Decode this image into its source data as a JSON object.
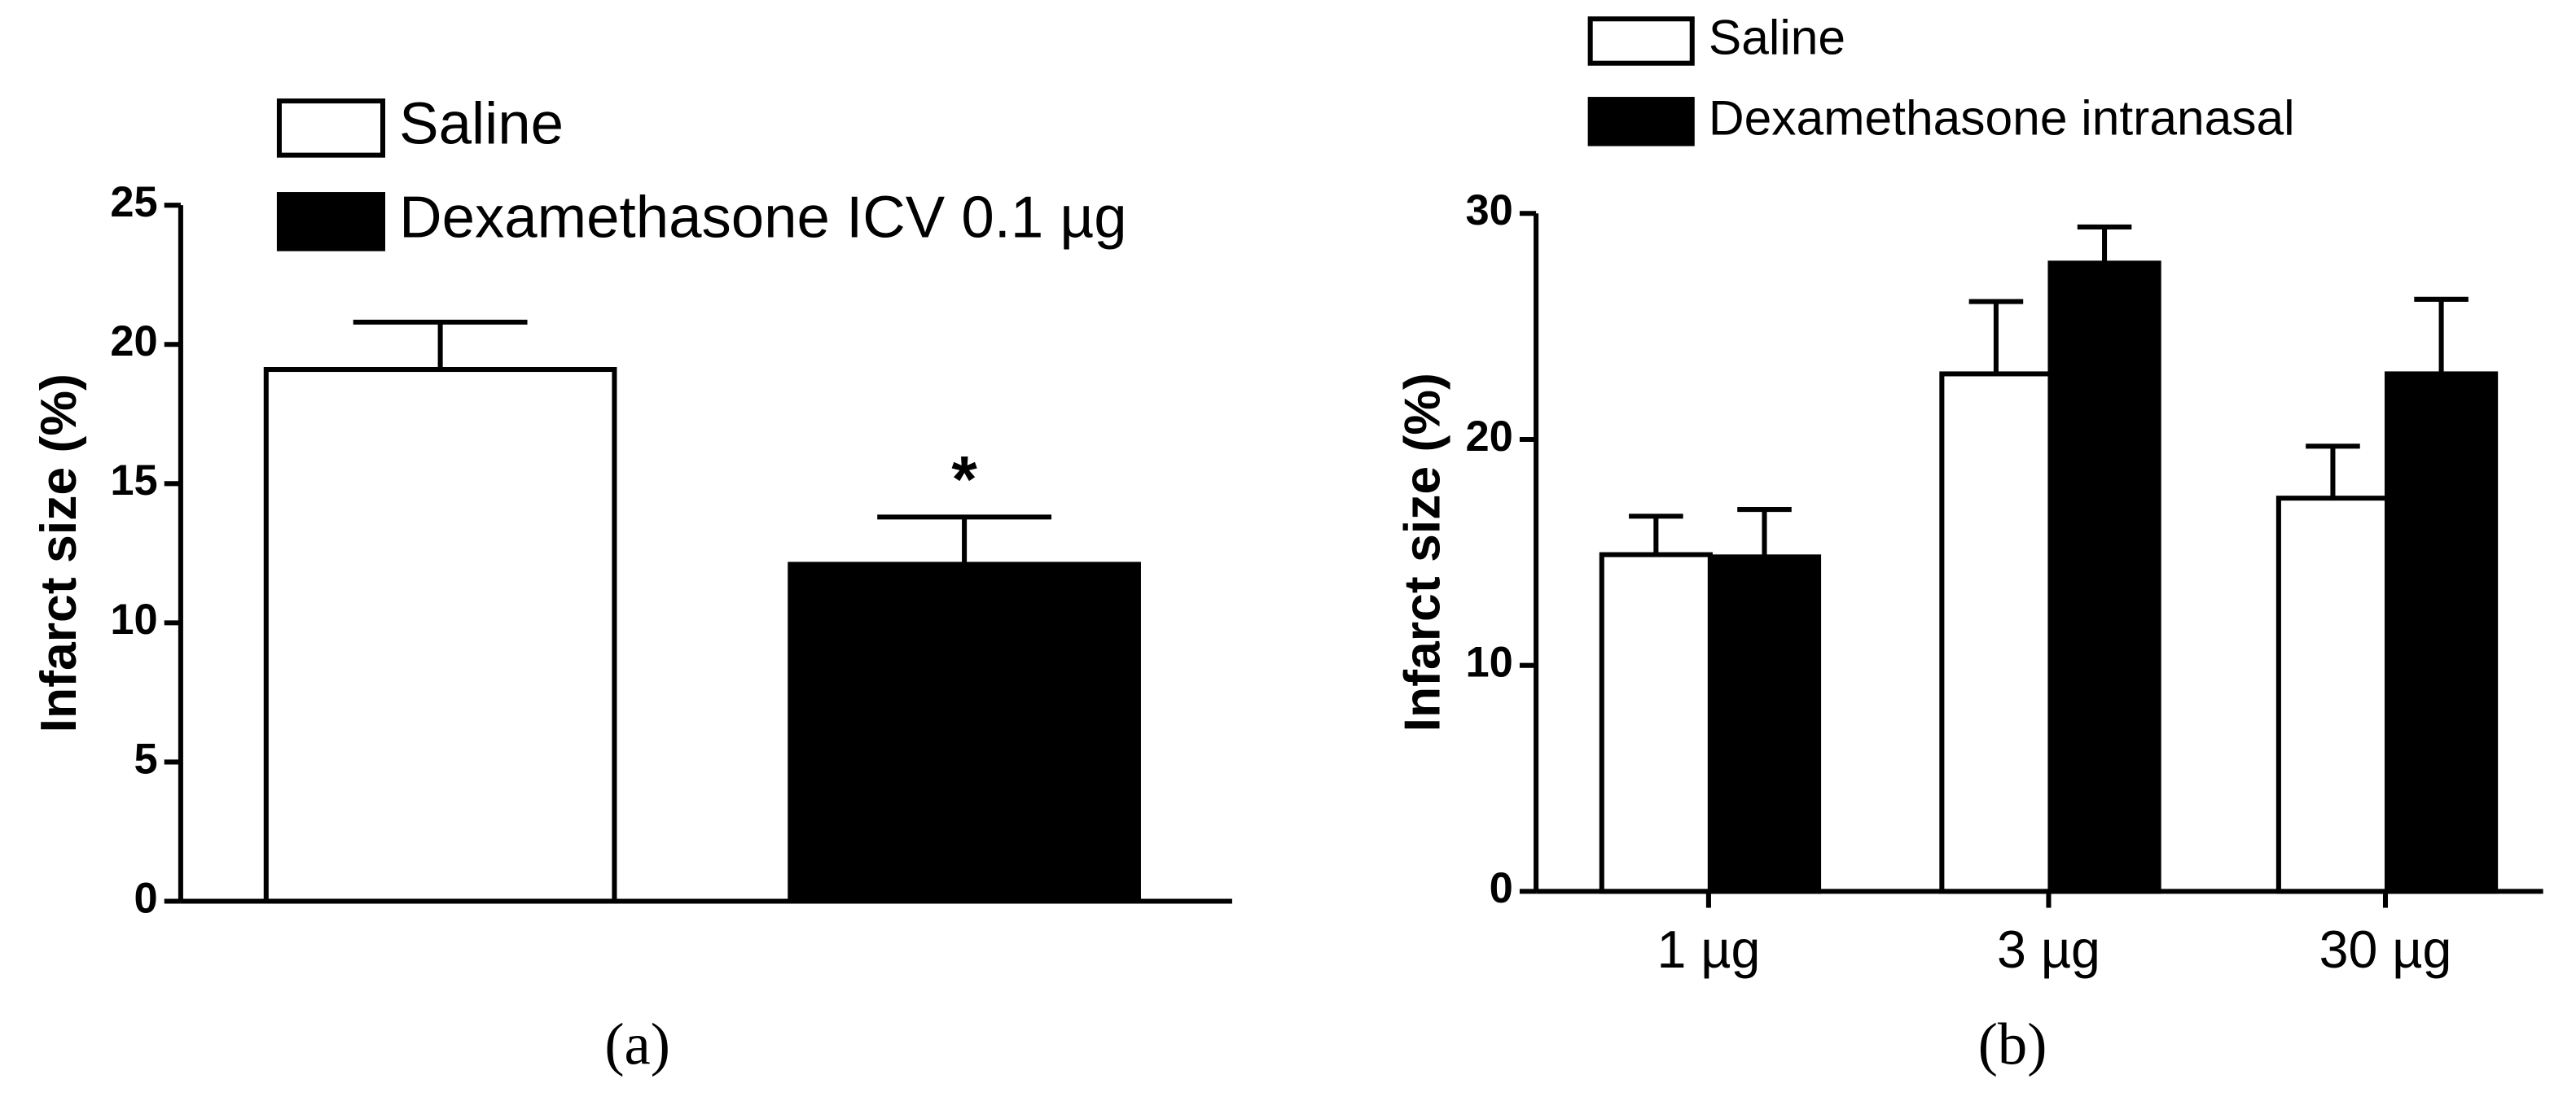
{
  "chart_data": [
    {
      "type": "bar",
      "ylabel": "Infarct size (%)",
      "caption": "(a)",
      "annotation": "*",
      "categories": [
        null
      ],
      "series": [
        {
          "name": "Saline",
          "color": "#ffffff",
          "edgecolor": "#000000",
          "values": [
            19.1
          ],
          "errors": [
            1.7
          ]
        },
        {
          "name": "Dexamethasone ICV  0.1 µg",
          "color": "#000000",
          "edgecolor": "#000000",
          "values": [
            12.1
          ],
          "errors": [
            1.7
          ]
        }
      ],
      "ylim": [
        0,
        25
      ],
      "yticks": [
        0,
        5,
        10,
        15,
        20,
        25
      ]
    },
    {
      "type": "bar",
      "ylabel": "Infarct size (%)",
      "caption": "(b)",
      "categories": [
        "1 µg",
        "3 µg",
        "30 µg"
      ],
      "series": [
        {
          "name": "Saline",
          "color": "#ffffff",
          "edgecolor": "#000000",
          "values": [
            14.9,
            22.9,
            17.4
          ],
          "errors": [
            1.7,
            3.2,
            2.3
          ]
        },
        {
          "name": "Dexamethasone intranasal",
          "color": "#000000",
          "edgecolor": "#000000",
          "values": [
            14.8,
            27.8,
            22.9
          ],
          "errors": [
            2.1,
            1.6,
            3.3
          ]
        }
      ],
      "ylim": [
        0,
        30
      ],
      "yticks": [
        0,
        10,
        20,
        30
      ]
    }
  ]
}
